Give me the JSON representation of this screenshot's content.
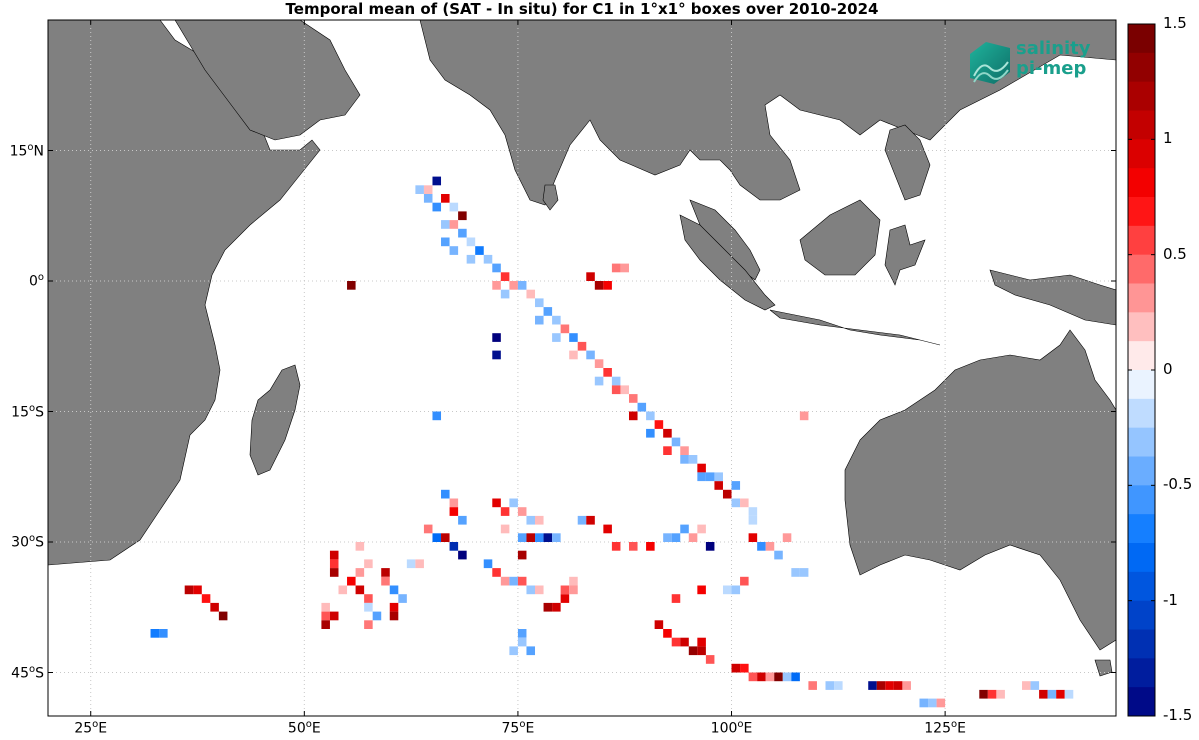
{
  "title": "Temporal mean of (SAT - In situ) for C1 in 1°x1° boxes over 2010-2024",
  "logo": {
    "line1": "salinity",
    "line2": "pi-mep"
  },
  "axes": {
    "y_ticks": [
      {
        "label_deg": "15",
        "label_suffix": "N",
        "lat": 15
      },
      {
        "label_deg": "0",
        "label_suffix": "",
        "lat": 0
      },
      {
        "label_deg": "15",
        "label_suffix": "S",
        "lat": -15
      },
      {
        "label_deg": "30",
        "label_suffix": "S",
        "lat": -30
      },
      {
        "label_deg": "45",
        "label_suffix": "S",
        "lat": -45
      }
    ],
    "x_ticks": [
      {
        "label_deg": "25",
        "label_suffix": "E",
        "lon": 25
      },
      {
        "label_deg": "50",
        "label_suffix": "E",
        "lon": 50
      },
      {
        "label_deg": "75",
        "label_suffix": "E",
        "lon": 75
      },
      {
        "label_deg": "100",
        "label_suffix": "E",
        "lon": 100
      },
      {
        "label_deg": "125",
        "label_suffix": "E",
        "lon": 125
      }
    ],
    "lon_range": [
      20,
      145
    ],
    "lat_range": [
      -50,
      30
    ]
  },
  "colorbar": {
    "min": -1.5,
    "max": 1.5,
    "tick_labels": [
      "1.5",
      "1",
      "0.5",
      "0",
      "-0.5",
      "-1",
      "-1.5"
    ],
    "tick_values": [
      1.5,
      1,
      0.5,
      0,
      -0.5,
      -1,
      -1.5
    ]
  },
  "colors": {
    "land": "#808080",
    "grid": "#c8c8c8"
  }
}
